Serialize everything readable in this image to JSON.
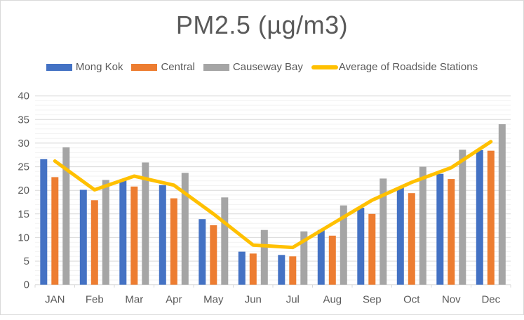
{
  "chart_data": {
    "type": "bar",
    "subtype": "grouped bars with line overlay",
    "title": "PM2.5 (µg/m3)",
    "xlabel": "",
    "ylabel": "",
    "ylim": [
      0,
      40
    ],
    "ytick_interval": 5,
    "minor_gridline_interval": 1,
    "grid": "on",
    "legend_position": "top",
    "categories": [
      "JAN",
      "Feb",
      "Mar",
      "Apr",
      "May",
      "Jun",
      "Jul",
      "Aug",
      "Sep",
      "Oct",
      "Nov",
      "Dec"
    ],
    "series": [
      {
        "name": "Mong Kok",
        "type": "bar",
        "color": "#4472C4",
        "values": [
          26.6,
          20.1,
          22.3,
          21.1,
          13.9,
          7.0,
          6.3,
          11.6,
          16.3,
          20.7,
          23.5,
          28.5
        ]
      },
      {
        "name": "Central",
        "type": "bar",
        "color": "#ED7D31",
        "values": [
          22.8,
          17.9,
          20.8,
          18.3,
          12.6,
          6.6,
          6.0,
          10.4,
          15.0,
          19.4,
          22.4,
          28.4
        ]
      },
      {
        "name": "Causeway Bay",
        "type": "bar",
        "color": "#A5A5A5",
        "values": [
          29.1,
          22.2,
          25.9,
          23.7,
          18.5,
          11.6,
          11.3,
          16.8,
          22.5,
          25.0,
          28.6,
          34.0
        ]
      },
      {
        "name": "Average of Roadside Stations",
        "type": "line",
        "color": "#FFC000",
        "values": [
          26.2,
          20.1,
          23.0,
          21.1,
          15.0,
          8.4,
          7.9,
          12.9,
          17.9,
          21.7,
          24.8,
          30.3
        ]
      }
    ],
    "style": {
      "title_color": "#595959",
      "axis_label_color": "#595959",
      "major_gridline_color": "#D9D9D9",
      "minor_gridline_color": "#F2F2F2",
      "axis_line_color": "#D9D9D9",
      "frame_border_color": "#D9D9D9",
      "background_color": "#FFFFFF"
    }
  }
}
